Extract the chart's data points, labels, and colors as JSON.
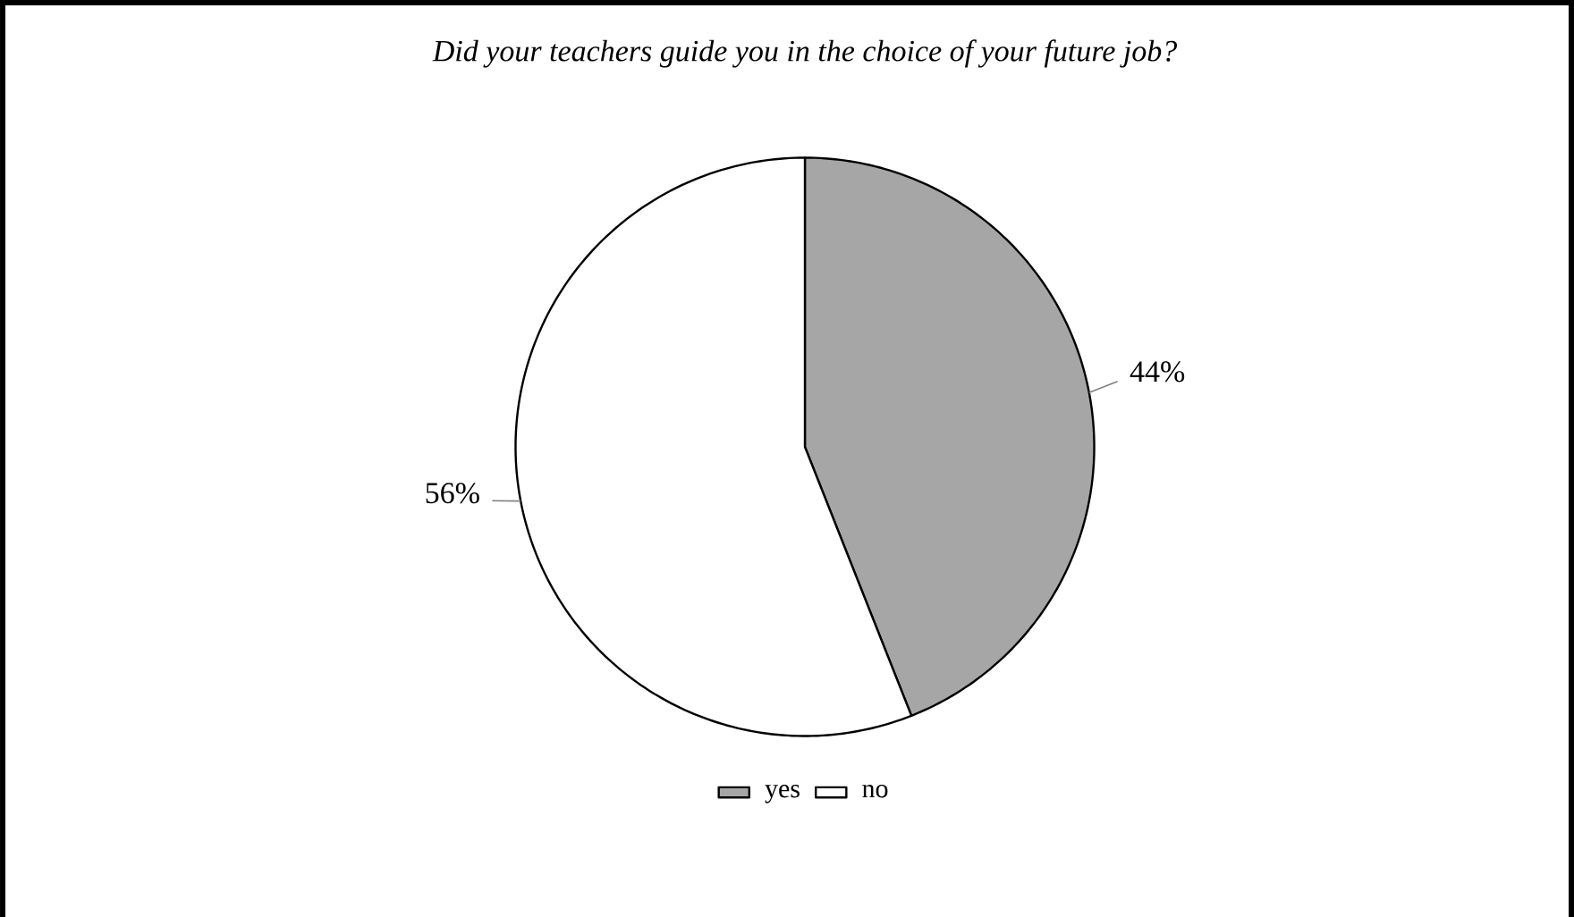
{
  "chart_data": {
    "type": "pie",
    "title": "Did your teachers guide you in the choice of your future job?",
    "categories": [
      "yes",
      "no"
    ],
    "values": [
      44,
      56
    ],
    "colors": [
      "#a6a6a6",
      "#ffffff"
    ],
    "value_labels": [
      "44%",
      "56%"
    ],
    "legend": "bottom"
  }
}
